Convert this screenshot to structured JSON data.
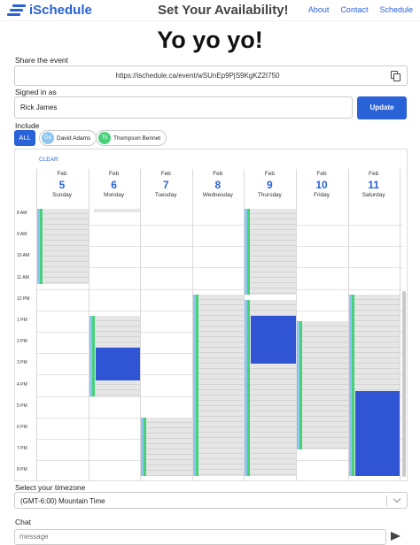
{
  "header": {
    "logo_text": "iSchedule",
    "title": "Set Your Availability!",
    "nav": [
      "About",
      "Contact",
      "Schedule"
    ]
  },
  "event": {
    "name": "Yo yo yo!",
    "share_label": "Share the event",
    "share_url": "https://ischedule.ca/event/wSUnEp9PjS9KgKZ2I750",
    "copy_icon": "copy-icon"
  },
  "user": {
    "signed_in_label": "Signed in as",
    "name": "Rick James",
    "update_label": "Update"
  },
  "include": {
    "label": "Include",
    "all_label": "ALL",
    "people": [
      {
        "initials": "Da",
        "name": "David Adams",
        "color": "#8ec6ef"
      },
      {
        "initials": "Th",
        "name": "Thompson Bennet",
        "color": "#47d17a"
      }
    ]
  },
  "calendar": {
    "clear_label": "CLEAR",
    "days": [
      {
        "month": "Feb",
        "date": "5",
        "weekday": "Sunday"
      },
      {
        "month": "Feb",
        "date": "6",
        "weekday": "Monday"
      },
      {
        "month": "Feb",
        "date": "7",
        "weekday": "Tuesday"
      },
      {
        "month": "Feb",
        "date": "8",
        "weekday": "Wednesday"
      },
      {
        "month": "Feb",
        "date": "9",
        "weekday": "Thursday"
      },
      {
        "month": "Feb",
        "date": "10",
        "weekday": "Friday"
      },
      {
        "month": "Feb",
        "date": "11",
        "weekday": "Saturday"
      }
    ],
    "hours": [
      "8 AM",
      "9 AM",
      "10 AM",
      "11 AM",
      "12 PM",
      "1 PM",
      "2 PM",
      "3 PM",
      "4 PM",
      "5 PM",
      "6 PM",
      "7 PM",
      "8 PM"
    ],
    "start_hour": 8,
    "colors": {
      "mine": "#2f55d4",
      "others": "#e6e6e6",
      "green": "#47d17a",
      "lightblue": "#8ec6ef"
    },
    "availability": [
      {
        "day": 0,
        "start": 8.0,
        "end": 11.5,
        "green": true,
        "blue": true,
        "mine": false
      },
      {
        "day": 1,
        "start": 8.0,
        "end": 8.15,
        "green": false,
        "blue": false,
        "mine": false
      },
      {
        "day": 1,
        "start": 13.0,
        "end": 16.75,
        "green": true,
        "blue": true,
        "mine": false
      },
      {
        "day": 1,
        "start": 14.5,
        "end": 16.0,
        "green": false,
        "blue": false,
        "mine": true
      },
      {
        "day": 2,
        "start": 17.75,
        "end": 20.5,
        "green": true,
        "blue": true,
        "mine": false
      },
      {
        "day": 3,
        "start": 12.0,
        "end": 20.5,
        "green": true,
        "blue": true,
        "mine": false
      },
      {
        "day": 4,
        "start": 8.0,
        "end": 12.0,
        "green": true,
        "blue": true,
        "mine": false
      },
      {
        "day": 4,
        "start": 12.25,
        "end": 20.5,
        "green": true,
        "blue": true,
        "mine": false
      },
      {
        "day": 4,
        "start": 13.0,
        "end": 15.25,
        "green": false,
        "blue": false,
        "mine": true
      },
      {
        "day": 5,
        "start": 13.25,
        "end": 19.25,
        "green": true,
        "blue": true,
        "mine": false
      },
      {
        "day": 6,
        "start": 12.0,
        "end": 20.5,
        "green": true,
        "blue": true,
        "mine": false
      },
      {
        "day": 6,
        "start": 16.5,
        "end": 20.5,
        "green": false,
        "blue": false,
        "mine": true
      }
    ]
  },
  "timezone": {
    "label": "Select your timezone",
    "value": "(GMT-6:00) Mountain Time"
  },
  "chat": {
    "label": "Chat",
    "placeholder": "message"
  }
}
